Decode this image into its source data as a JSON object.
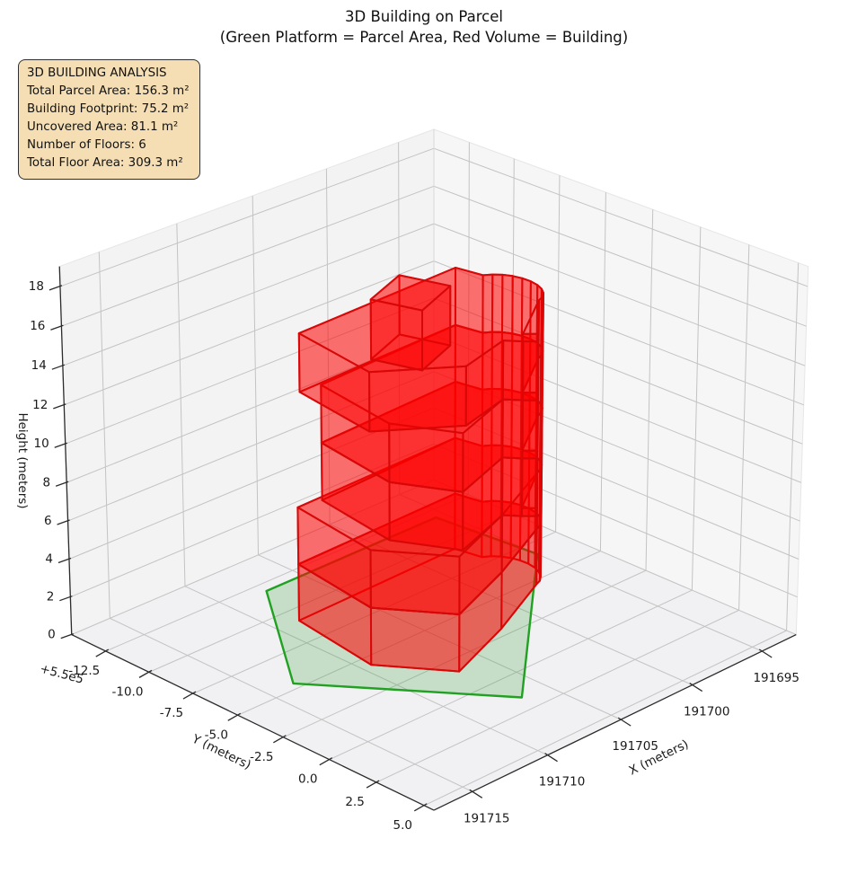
{
  "title": {
    "line1": "3D Building on Parcel",
    "line2": "(Green Platform = Parcel Area, Red Volume = Building)"
  },
  "info_box": {
    "lines": [
      "3D BUILDING ANALYSIS",
      "Total Parcel Area: 156.3 m²",
      "Building Footprint: 75.2 m²",
      "Uncovered Area: 81.1 m²",
      "Number of Floors: 6",
      "Total Floor Area: 309.3 m²"
    ]
  },
  "axes": {
    "x_label": "X (meters)",
    "y_label": "Y (meters)",
    "z_label": "Height (meters)",
    "y_offset_text": "+5.5e5",
    "x_ticks": {
      "values": [
        191695,
        191700,
        191705,
        191710,
        191715
      ],
      "labels": [
        "191695",
        "191700",
        "191705",
        "191710",
        "191715"
      ]
    },
    "y_ticks": {
      "values": [
        -12.5,
        -10,
        -7.5,
        -5,
        -2.5,
        0,
        2.5,
        5
      ],
      "labels": [
        "-12.5",
        "-10.0",
        "-7.5",
        "-5.0",
        "-2.5",
        "0.0",
        "2.5",
        "5.0"
      ]
    },
    "z_ticks": {
      "values": [
        0,
        2,
        4,
        6,
        8,
        10,
        12,
        14,
        16,
        18
      ],
      "labels": [
        "0",
        "2",
        "4",
        "6",
        "8",
        "10",
        "12",
        "14",
        "16",
        "18"
      ]
    },
    "x_range": [
      191692.5,
      191717.5
    ],
    "y_range": [
      -14.5,
      5.5
    ],
    "z_range": [
      0,
      19
    ]
  },
  "colors": {
    "parcel_edge": "#21a121",
    "parcel_fill": "rgba(30,150,30,0.20)",
    "building_edge": "rgba(216,8,8,0.92)",
    "building_fill": "rgba(255,0,0,0.33)",
    "pane_floor": "#f1f1f3",
    "pane_left": "#f3f3f3",
    "pane_right": "#f6f6f6",
    "grid": "#c3c3c3",
    "spine": "#2b2b2b",
    "text": "#1a1a1a",
    "info_bg": "#f5deb3",
    "info_border": "#2f2f2f"
  },
  "chart_data": {
    "type": "3d-building",
    "title": "3D Building on Parcel",
    "subtitle": "(Green Platform = Parcel Area, Red Volume = Building)",
    "stats": {
      "total_parcel_area_m2": 156.3,
      "building_footprint_m2": 75.2,
      "uncovered_area_m2": 81.1,
      "number_of_floors": 6,
      "total_floor_area_m2": 309.3
    },
    "floor_height_m": 3,
    "building_height_m": 18,
    "x_origin": 191700,
    "y_offset": "+5.5e5",
    "parcel_polygon_xy": [
      [
        7.5,
        -11.9
      ],
      [
        13.4,
        -5.4
      ],
      [
        6.7,
        1.6
      ],
      [
        -5.0,
        -6.6
      ],
      [
        -4.4,
        -11.9
      ]
    ],
    "footprints": {
      "A": [
        [
          8.6,
          -9.1
        ],
        [
          9.4,
          -4.4
        ],
        [
          6.9,
          -1.6
        ],
        [
          2.2,
          -3.0
        ],
        [
          -2.5,
          -4.73
        ],
        [
          -2.92,
          -4.86
        ],
        [
          -3.29,
          -5.1
        ],
        [
          -3.59,
          -5.43
        ],
        [
          -3.8,
          -5.82
        ],
        [
          -3.89,
          -6.25
        ],
        [
          -3.87,
          -6.7
        ],
        [
          -3.74,
          -7.12
        ],
        [
          -3.5,
          -7.49
        ],
        [
          -3.18,
          -7.79
        ],
        [
          -2.78,
          -8.0
        ],
        [
          -2.5,
          -9.3
        ]
      ],
      "B": [
        [
          7.2,
          -8.9
        ],
        [
          8.0,
          -4.5
        ],
        [
          6.3,
          -1.9
        ],
        [
          2.2,
          -3.0
        ],
        [
          1.6,
          -2.4
        ],
        [
          1.1,
          -2.0
        ],
        [
          0.48,
          -2.5
        ],
        [
          0.98,
          -2.9
        ],
        [
          -2.5,
          -4.73
        ],
        [
          -2.92,
          -4.86
        ],
        [
          -3.29,
          -5.1
        ],
        [
          -3.59,
          -5.43
        ],
        [
          -3.8,
          -5.82
        ],
        [
          -3.89,
          -6.25
        ],
        [
          -3.87,
          -6.7
        ],
        [
          -3.74,
          -7.12
        ],
        [
          -3.5,
          -7.49
        ],
        [
          -3.18,
          -7.79
        ],
        [
          -2.78,
          -8.0
        ],
        [
          -2.5,
          -9.3
        ]
      ],
      "C": [
        [
          8.5,
          -9.0
        ],
        [
          9.3,
          -4.5
        ],
        [
          5.6,
          -2.3
        ],
        [
          2.2,
          -3.0
        ],
        [
          1.6,
          -2.4
        ],
        [
          1.1,
          -2.0
        ],
        [
          0.48,
          -2.5
        ],
        [
          0.98,
          -2.9
        ],
        [
          -2.5,
          -4.73
        ],
        [
          -2.92,
          -4.86
        ],
        [
          -3.29,
          -5.1
        ],
        [
          -3.59,
          -5.43
        ],
        [
          -3.8,
          -5.82
        ],
        [
          -3.89,
          -6.25
        ],
        [
          -3.87,
          -6.7
        ],
        [
          -3.74,
          -7.12
        ],
        [
          -3.5,
          -7.49
        ],
        [
          -3.18,
          -7.79
        ],
        [
          -2.78,
          -8.0
        ],
        [
          -2.5,
          -9.3
        ]
      ],
      "D": [
        [
          5.2,
          -6.2
        ],
        [
          8.2,
          -5.3
        ],
        [
          7.4,
          -3.2
        ],
        [
          4.4,
          -4.1
        ]
      ]
    },
    "floors": [
      {
        "level": 1,
        "z0": 0,
        "z1": 3,
        "footprint": "A"
      },
      {
        "level": 2,
        "z0": 3,
        "z1": 6,
        "footprint": "A"
      },
      {
        "level": 3,
        "z0": 6,
        "z1": 9,
        "footprint": "B"
      },
      {
        "level": 4,
        "z0": 9,
        "z1": 12,
        "footprint": "B"
      },
      {
        "level": 5,
        "z0": 12,
        "z1": 15,
        "footprint": "C"
      },
      {
        "level": 6,
        "z0": 15,
        "z1": 18,
        "footprint": "D"
      }
    ]
  }
}
